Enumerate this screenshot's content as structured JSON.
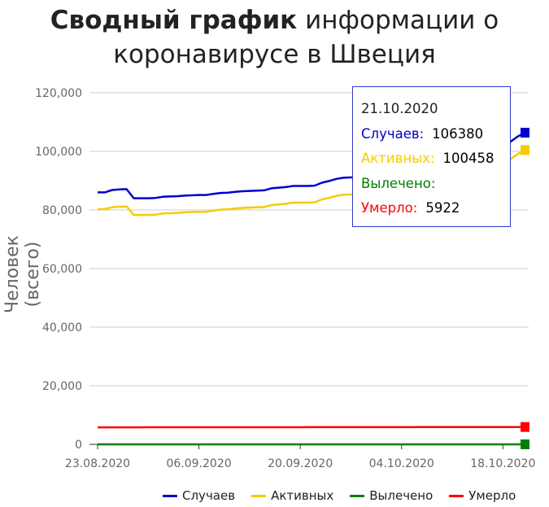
{
  "title": {
    "bold": "Сводный график",
    "line1_rest": " информации о",
    "line2": "коронавирусе в Швеция"
  },
  "chart_data": {
    "type": "line",
    "ylabel": "Человек (всего)",
    "ylim": [
      0,
      120000
    ],
    "yticks": [
      "0",
      "20,000",
      "40,000",
      "60,000",
      "80,000",
      "100,000",
      "120,000"
    ],
    "xticks": [
      "23.08.2020",
      "06.09.2020",
      "20.09.2020",
      "04.10.2020",
      "18.10.2020"
    ],
    "x": [
      "23.08.2020",
      "24.08.2020",
      "25.08.2020",
      "26.08.2020",
      "27.08.2020",
      "28.08.2020",
      "29.08.2020",
      "30.08.2020",
      "31.08.2020",
      "01.09.2020",
      "02.09.2020",
      "03.09.2020",
      "04.09.2020",
      "05.09.2020",
      "06.09.2020",
      "07.09.2020",
      "08.09.2020",
      "09.09.2020",
      "10.09.2020",
      "11.09.2020",
      "12.09.2020",
      "13.09.2020",
      "14.09.2020",
      "15.09.2020",
      "16.09.2020",
      "17.09.2020",
      "18.09.2020",
      "19.09.2020",
      "20.09.2020",
      "21.09.2020",
      "22.09.2020",
      "23.09.2020",
      "24.09.2020",
      "25.09.2020",
      "26.09.2020",
      "27.09.2020",
      "28.09.2020",
      "29.09.2020",
      "30.09.2020",
      "01.10.2020",
      "02.10.2020",
      "03.10.2020",
      "04.10.2020",
      "05.10.2020",
      "06.10.2020",
      "07.10.2020",
      "08.10.2020",
      "09.10.2020",
      "10.10.2020",
      "11.10.2020",
      "12.10.2020",
      "13.10.2020",
      "14.10.2020",
      "15.10.2020",
      "16.10.2020",
      "17.10.2020",
      "18.10.2020",
      "19.10.2020",
      "20.10.2020",
      "21.10.2020"
    ],
    "series": [
      {
        "name": "Случаев",
        "color": "#0000cc",
        "values": [
          86000,
          86000,
          86800,
          87000,
          87100,
          84000,
          84000,
          84000,
          84100,
          84500,
          84600,
          84700,
          84900,
          85000,
          85100,
          85100,
          85500,
          85800,
          85900,
          86200,
          86400,
          86500,
          86600,
          86700,
          87400,
          87600,
          87800,
          88200,
          88200,
          88200,
          88300,
          89300,
          89900,
          90600,
          91000,
          91100,
          91200,
          91300,
          92000,
          92400,
          92900,
          93400,
          94000,
          94300,
          94700,
          95300,
          96000,
          96600,
          97600,
          98500,
          99000,
          99800,
          100400,
          101100,
          101600,
          102000,
          102500,
          103200,
          105000,
          106380
        ]
      },
      {
        "name": "Активных",
        "color": "#f5cc00",
        "values": [
          80200,
          80300,
          80900,
          81100,
          81200,
          78300,
          78300,
          78300,
          78400,
          78800,
          78900,
          79000,
          79200,
          79300,
          79400,
          79400,
          79800,
          80100,
          80200,
          80500,
          80700,
          80800,
          80900,
          81000,
          81700,
          81900,
          82100,
          82500,
          82500,
          82500,
          82600,
          83600,
          84100,
          84800,
          85200,
          85300,
          85400,
          85500,
          86100,
          86500,
          87000,
          87500,
          88100,
          88400,
          88800,
          89400,
          90100,
          90700,
          91700,
          92600,
          93100,
          93900,
          94500,
          95200,
          95700,
          96100,
          96600,
          97300,
          99000,
          100458
        ]
      },
      {
        "name": "Вылечено",
        "color": "#008000",
        "values": [
          0,
          0,
          0,
          0,
          0,
          0,
          0,
          0,
          0,
          0,
          0,
          0,
          0,
          0,
          0,
          0,
          0,
          0,
          0,
          0,
          0,
          0,
          0,
          0,
          0,
          0,
          0,
          0,
          0,
          0,
          0,
          0,
          0,
          0,
          0,
          0,
          0,
          0,
          0,
          0,
          0,
          0,
          0,
          0,
          0,
          0,
          0,
          0,
          0,
          0,
          0,
          0,
          0,
          0,
          0,
          0,
          0,
          0,
          0,
          0
        ]
      },
      {
        "name": "Умерло",
        "color": "#ff0000",
        "values": [
          5810,
          5812,
          5814,
          5815,
          5817,
          5818,
          5819,
          5820,
          5821,
          5822,
          5823,
          5825,
          5826,
          5827,
          5828,
          5829,
          5831,
          5832,
          5834,
          5835,
          5836,
          5838,
          5839,
          5840,
          5842,
          5843,
          5844,
          5846,
          5847,
          5848,
          5850,
          5852,
          5853,
          5855,
          5857,
          5858,
          5860,
          5862,
          5864,
          5866,
          5868,
          5870,
          5872,
          5874,
          5876,
          5878,
          5881,
          5883,
          5886,
          5888,
          5891,
          5893,
          5896,
          5899,
          5902,
          5905,
          5908,
          5912,
          5917,
          5922
        ]
      }
    ],
    "legend_position": "bottom",
    "grid": true
  },
  "tooltip": {
    "date": "21.10.2020",
    "rows": [
      {
        "label": "Случаев:",
        "value": "106380",
        "color": "#0000cc"
      },
      {
        "label": "Активных:",
        "value": "100458",
        "color": "#f5cc00"
      },
      {
        "label": "Вылечено:",
        "value": "",
        "color": "#008000"
      },
      {
        "label": "Умерло:",
        "value": "5922",
        "color": "#ff0000"
      }
    ]
  }
}
